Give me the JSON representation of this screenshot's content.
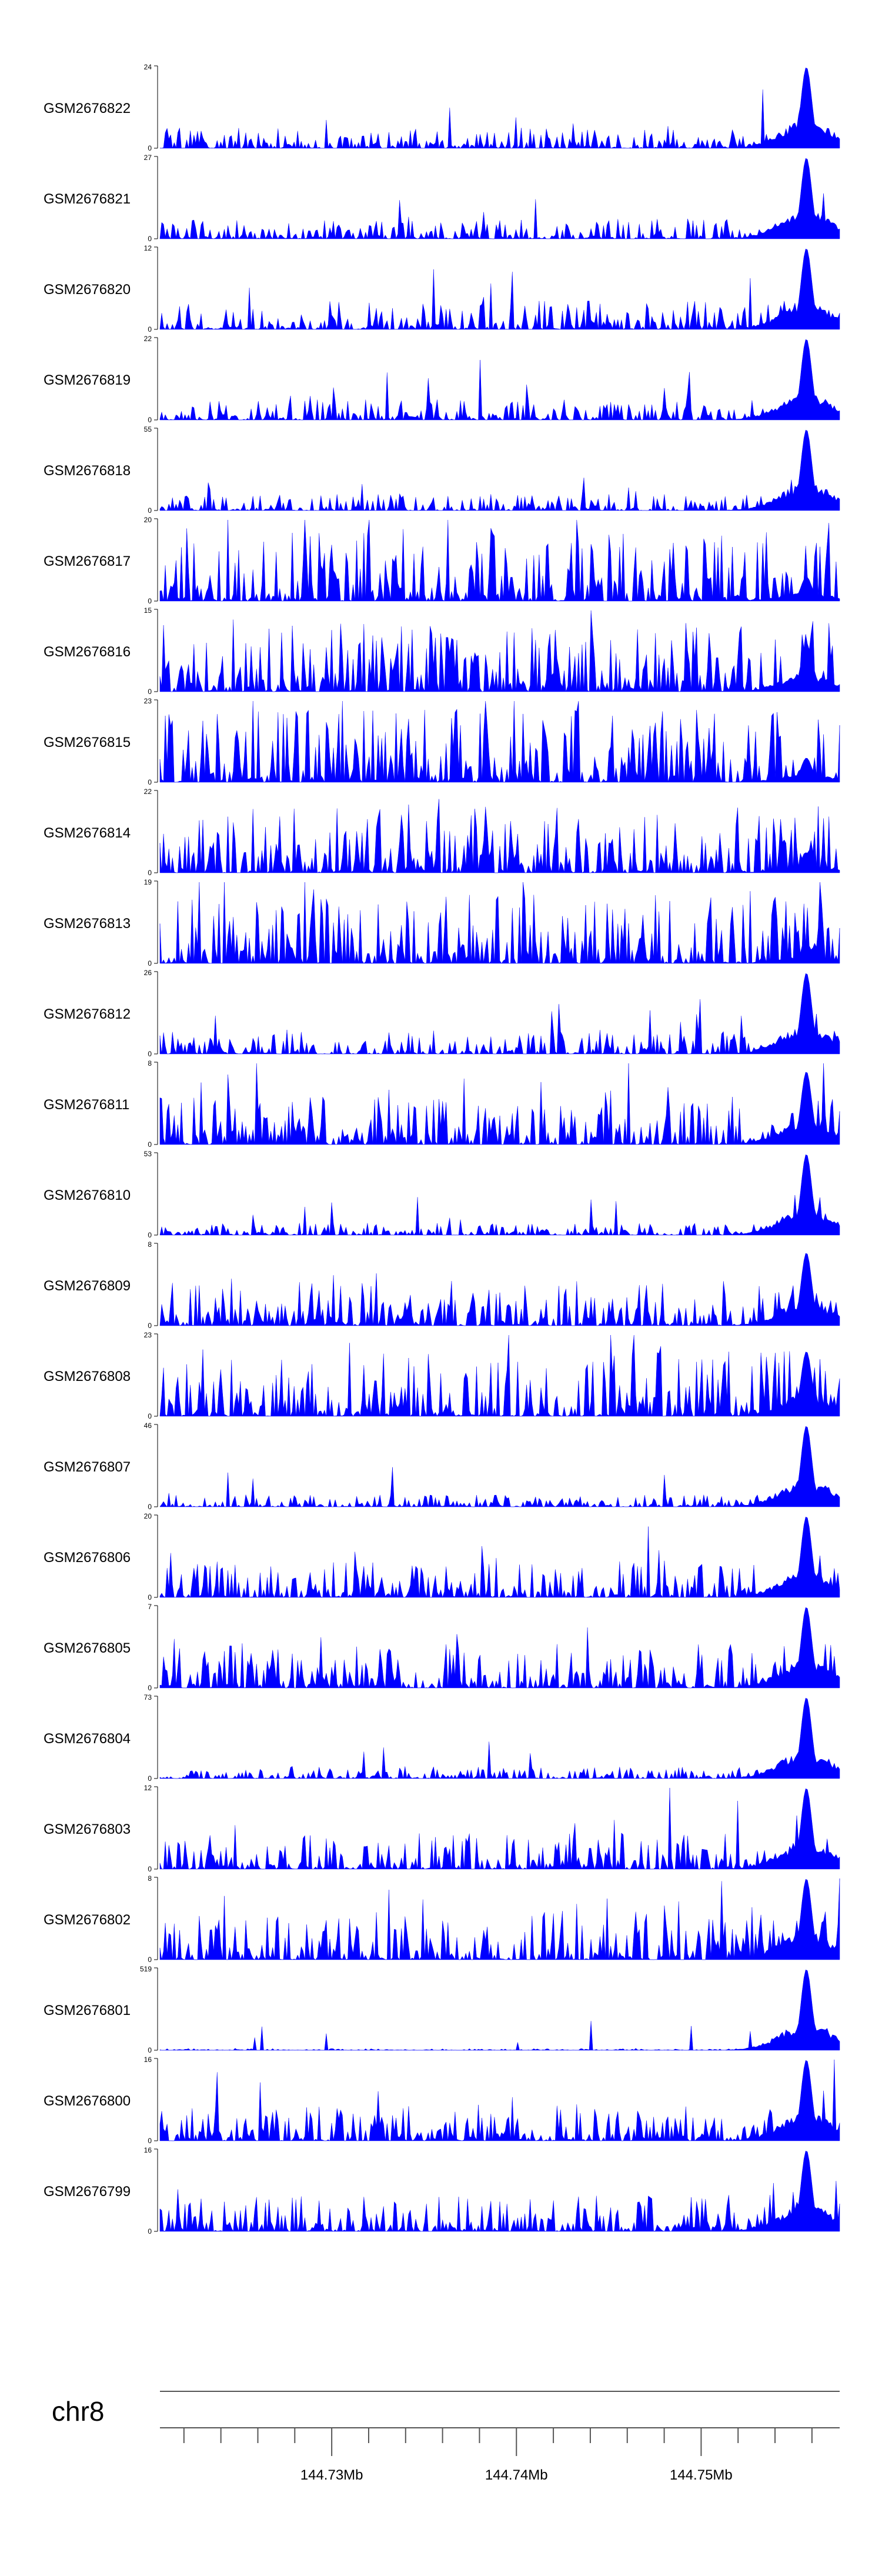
{
  "chart_data": {
    "type": "area",
    "color": "#0000ff",
    "chromosome": "chr8",
    "x_axis": {
      "range_mb": [
        144.7207,
        144.7575
      ],
      "tick_labels": [
        "144.73Mb",
        "144.74Mb",
        "144.75Mb"
      ],
      "label_values_mb": [
        144.73,
        144.74,
        144.75
      ],
      "minor_tick_step_mb": 0.002
    },
    "tracks": [
      {
        "name": "GSM2676822",
        "ymax": 24,
        "ymin": 0,
        "peak_mb": 144.7557,
        "peak_rel": 1.0,
        "spikiness": 0.25,
        "seed": 11
      },
      {
        "name": "GSM2676821",
        "ymax": 27,
        "ymin": 0,
        "peak_mb": 144.7557,
        "peak_rel": 1.0,
        "spikiness": 0.25,
        "seed": 12
      },
      {
        "name": "GSM2676820",
        "ymax": 12,
        "ymin": 0,
        "peak_mb": 144.7557,
        "peak_rel": 1.0,
        "spikiness": 0.35,
        "seed": 13
      },
      {
        "name": "GSM2676819",
        "ymax": 22,
        "ymin": 0,
        "peak_mb": 144.7557,
        "peak_rel": 1.0,
        "spikiness": 0.25,
        "seed": 14
      },
      {
        "name": "GSM2676818",
        "ymax": 55,
        "ymin": 0,
        "peak_mb": 144.7557,
        "peak_rel": 1.0,
        "spikiness": 0.2,
        "seed": 15
      },
      {
        "name": "GSM2676817",
        "ymax": 20,
        "ymin": 0,
        "peak_mb": 144.7557,
        "peak_rel": 0.3,
        "spikiness": 0.85,
        "seed": 16
      },
      {
        "name": "GSM2676816",
        "ymax": 15,
        "ymin": 0,
        "peak_mb": 144.7557,
        "peak_rel": 0.6,
        "spikiness": 0.85,
        "seed": 17
      },
      {
        "name": "GSM2676815",
        "ymax": 23,
        "ymin": 0,
        "peak_mb": 144.7557,
        "peak_rel": 0.3,
        "spikiness": 0.9,
        "seed": 18
      },
      {
        "name": "GSM2676814",
        "ymax": 22,
        "ymin": 0,
        "peak_mb": 144.7557,
        "peak_rel": 0.25,
        "spikiness": 0.85,
        "seed": 19
      },
      {
        "name": "GSM2676813",
        "ymax": 19,
        "ymin": 0,
        "peak_mb": 144.7557,
        "peak_rel": 0.25,
        "spikiness": 0.85,
        "seed": 20
      },
      {
        "name": "GSM2676812",
        "ymax": 26,
        "ymin": 0,
        "peak_mb": 144.7557,
        "peak_rel": 1.0,
        "spikiness": 0.3,
        "seed": 21
      },
      {
        "name": "GSM2676811",
        "ymax": 8,
        "ymin": 0,
        "peak_mb": 144.7557,
        "peak_rel": 0.9,
        "spikiness": 0.6,
        "seed": 22
      },
      {
        "name": "GSM2676810",
        "ymax": 53,
        "ymin": 0,
        "peak_mb": 144.7557,
        "peak_rel": 1.0,
        "spikiness": 0.15,
        "seed": 23
      },
      {
        "name": "GSM2676809",
        "ymax": 8,
        "ymin": 0,
        "peak_mb": 144.7557,
        "peak_rel": 0.9,
        "spikiness": 0.55,
        "seed": 24
      },
      {
        "name": "GSM2676808",
        "ymax": 23,
        "ymin": 0,
        "peak_mb": 144.7557,
        "peak_rel": 0.8,
        "spikiness": 0.8,
        "seed": 25
      },
      {
        "name": "GSM2676807",
        "ymax": 46,
        "ymin": 0,
        "peak_mb": 144.7557,
        "peak_rel": 1.0,
        "spikiness": 0.15,
        "seed": 26
      },
      {
        "name": "GSM2676806",
        "ymax": 20,
        "ymin": 0,
        "peak_mb": 144.7557,
        "peak_rel": 1.0,
        "spikiness": 0.45,
        "seed": 27
      },
      {
        "name": "GSM2676805",
        "ymax": 7,
        "ymin": 0,
        "peak_mb": 144.7557,
        "peak_rel": 1.0,
        "spikiness": 0.55,
        "seed": 28
      },
      {
        "name": "GSM2676804",
        "ymax": 73,
        "ymin": 0,
        "peak_mb": 144.7557,
        "peak_rel": 1.0,
        "spikiness": 0.15,
        "seed": 29
      },
      {
        "name": "GSM2676803",
        "ymax": 12,
        "ymin": 0,
        "peak_mb": 144.7557,
        "peak_rel": 1.0,
        "spikiness": 0.45,
        "seed": 30
      },
      {
        "name": "GSM2676802",
        "ymax": 8,
        "ymin": 0,
        "peak_mb": 144.7557,
        "peak_rel": 1.0,
        "spikiness": 0.6,
        "seed": 31
      },
      {
        "name": "GSM2676801",
        "ymax": 519,
        "ymin": 0,
        "peak_mb": 144.7557,
        "peak_rel": 1.0,
        "spikiness": 0.02,
        "seed": 32
      },
      {
        "name": "GSM2676800",
        "ymax": 16,
        "ymin": 0,
        "peak_mb": 144.7557,
        "peak_rel": 1.0,
        "spikiness": 0.45,
        "seed": 33
      },
      {
        "name": "GSM2676799",
        "ymax": 16,
        "ymin": 0,
        "peak_mb": 144.7557,
        "peak_rel": 1.0,
        "spikiness": 0.45,
        "seed": 34
      }
    ]
  }
}
